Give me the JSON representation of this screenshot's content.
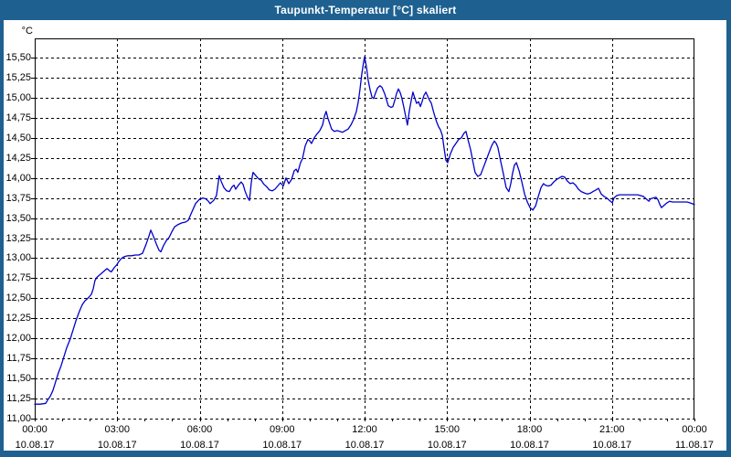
{
  "window": {
    "title": "Taupunkt-Temperatur [°C] skaliert"
  },
  "colors": {
    "frame": "#1e6191",
    "title_text": "#ffffff",
    "plot_bg": "#ffffff",
    "grid": "#000000",
    "line": "#0000cc"
  },
  "chart_data": {
    "type": "line",
    "title": "Taupunkt-Temperatur [°C] skaliert",
    "y_unit_label": "°C",
    "xlabel": "",
    "ylabel": "Taupunkt-Temperatur [°C]",
    "grid": "dashed",
    "legend_position": "none",
    "ylim": [
      11.0,
      15.74
    ],
    "x_hours_range": [
      0,
      24
    ],
    "x_minor_tick_step_hours": 1,
    "y_ticks": [
      {
        "v": 15.5,
        "label": "15,50"
      },
      {
        "v": 15.25,
        "label": "15,25"
      },
      {
        "v": 15.0,
        "label": "15,00"
      },
      {
        "v": 14.75,
        "label": "14,75"
      },
      {
        "v": 14.5,
        "label": "14,50"
      },
      {
        "v": 14.25,
        "label": "14,25"
      },
      {
        "v": 14.0,
        "label": "14,00"
      },
      {
        "v": 13.75,
        "label": "13,75"
      },
      {
        "v": 13.5,
        "label": "13,50"
      },
      {
        "v": 13.25,
        "label": "13,25"
      },
      {
        "v": 13.0,
        "label": "13,00"
      },
      {
        "v": 12.75,
        "label": "12,75"
      },
      {
        "v": 12.5,
        "label": "12,50"
      },
      {
        "v": 12.25,
        "label": "12,25"
      },
      {
        "v": 12.0,
        "label": "12,00"
      },
      {
        "v": 11.75,
        "label": "11,75"
      },
      {
        "v": 11.5,
        "label": "11,50"
      },
      {
        "v": 11.25,
        "label": "11,25"
      },
      {
        "v": 11.0,
        "label": "11,00"
      }
    ],
    "x_ticks": [
      {
        "t": 0,
        "time": "00:00",
        "date": "10.08.17"
      },
      {
        "t": 3,
        "time": "03:00",
        "date": "10.08.17"
      },
      {
        "t": 6,
        "time": "06:00",
        "date": "10.08.17"
      },
      {
        "t": 9,
        "time": "09:00",
        "date": "10.08.17"
      },
      {
        "t": 12,
        "time": "12:00",
        "date": "10.08.17"
      },
      {
        "t": 15,
        "time": "15:00",
        "date": "10.08.17"
      },
      {
        "t": 18,
        "time": "18:00",
        "date": "10.08.17"
      },
      {
        "t": 21,
        "time": "21:00",
        "date": "10.08.17"
      },
      {
        "t": 24,
        "time": "00:00",
        "date": "11.08.17"
      }
    ],
    "series": [
      {
        "name": "Taupunkt-Temperatur",
        "color": "#0000cc",
        "points": [
          [
            0,
            11.18
          ],
          [
            0.2,
            11.18
          ],
          [
            0.4,
            11.19
          ],
          [
            0.47,
            11.23
          ],
          [
            0.57,
            11.28
          ],
          [
            0.66,
            11.35
          ],
          [
            0.76,
            11.46
          ],
          [
            0.86,
            11.57
          ],
          [
            0.96,
            11.66
          ],
          [
            1.06,
            11.77
          ],
          [
            1.16,
            11.88
          ],
          [
            1.3,
            12.0
          ],
          [
            1.4,
            12.11
          ],
          [
            1.5,
            12.22
          ],
          [
            1.63,
            12.34
          ],
          [
            1.73,
            12.42
          ],
          [
            1.83,
            12.47
          ],
          [
            1.93,
            12.5
          ],
          [
            2.06,
            12.55
          ],
          [
            2.13,
            12.62
          ],
          [
            2.19,
            12.72
          ],
          [
            2.26,
            12.76
          ],
          [
            2.36,
            12.79
          ],
          [
            2.46,
            12.82
          ],
          [
            2.56,
            12.85
          ],
          [
            2.63,
            12.87
          ],
          [
            2.73,
            12.84
          ],
          [
            2.79,
            12.83
          ],
          [
            2.89,
            12.88
          ],
          [
            2.99,
            12.92
          ],
          [
            3.06,
            12.96
          ],
          [
            3.16,
            13.0
          ],
          [
            3.26,
            13.02
          ],
          [
            3.39,
            13.03
          ],
          [
            3.52,
            13.03
          ],
          [
            3.66,
            13.04
          ],
          [
            3.79,
            13.04
          ],
          [
            3.92,
            13.06
          ],
          [
            4.06,
            13.18
          ],
          [
            4.16,
            13.28
          ],
          [
            4.22,
            13.35
          ],
          [
            4.32,
            13.27
          ],
          [
            4.42,
            13.18
          ],
          [
            4.52,
            13.1
          ],
          [
            4.59,
            13.08
          ],
          [
            4.69,
            13.16
          ],
          [
            4.79,
            13.22
          ],
          [
            4.89,
            13.26
          ],
          [
            4.99,
            13.33
          ],
          [
            5.09,
            13.39
          ],
          [
            5.22,
            13.42
          ],
          [
            5.35,
            13.44
          ],
          [
            5.48,
            13.45
          ],
          [
            5.58,
            13.47
          ],
          [
            5.72,
            13.58
          ],
          [
            5.85,
            13.68
          ],
          [
            5.98,
            13.73
          ],
          [
            6.12,
            13.75
          ],
          [
            6.22,
            13.74
          ],
          [
            6.32,
            13.71
          ],
          [
            6.38,
            13.68
          ],
          [
            6.51,
            13.72
          ],
          [
            6.61,
            13.78
          ],
          [
            6.71,
            14.03
          ],
          [
            6.78,
            13.96
          ],
          [
            6.88,
            13.88
          ],
          [
            6.98,
            13.84
          ],
          [
            7.08,
            13.83
          ],
          [
            7.18,
            13.89
          ],
          [
            7.25,
            13.91
          ],
          [
            7.31,
            13.86
          ],
          [
            7.41,
            13.91
          ],
          [
            7.51,
            13.95
          ],
          [
            7.58,
            13.92
          ],
          [
            7.65,
            13.84
          ],
          [
            7.74,
            13.76
          ],
          [
            7.81,
            13.72
          ],
          [
            7.88,
            13.95
          ],
          [
            7.94,
            14.07
          ],
          [
            8.04,
            14.03
          ],
          [
            8.14,
            13.99
          ],
          [
            8.24,
            13.97
          ],
          [
            8.34,
            13.92
          ],
          [
            8.44,
            13.89
          ],
          [
            8.54,
            13.85
          ],
          [
            8.64,
            13.84
          ],
          [
            8.74,
            13.86
          ],
          [
            8.84,
            13.9
          ],
          [
            8.94,
            13.94
          ],
          [
            9.04,
            13.9
          ],
          [
            9.14,
            14.0
          ],
          [
            9.24,
            13.93
          ],
          [
            9.34,
            13.98
          ],
          [
            9.44,
            14.09
          ],
          [
            9.51,
            14.11
          ],
          [
            9.57,
            14.07
          ],
          [
            9.67,
            14.19
          ],
          [
            9.74,
            14.24
          ],
          [
            9.84,
            14.4
          ],
          [
            9.94,
            14.48
          ],
          [
            10.01,
            14.46
          ],
          [
            10.07,
            14.43
          ],
          [
            10.17,
            14.5
          ],
          [
            10.27,
            14.55
          ],
          [
            10.37,
            14.59
          ],
          [
            10.47,
            14.66
          ],
          [
            10.54,
            14.77
          ],
          [
            10.6,
            14.83
          ],
          [
            10.67,
            14.74
          ],
          [
            10.74,
            14.67
          ],
          [
            10.8,
            14.61
          ],
          [
            10.9,
            14.58
          ],
          [
            11.0,
            14.59
          ],
          [
            11.1,
            14.58
          ],
          [
            11.2,
            14.57
          ],
          [
            11.3,
            14.59
          ],
          [
            11.4,
            14.61
          ],
          [
            11.5,
            14.66
          ],
          [
            11.6,
            14.73
          ],
          [
            11.7,
            14.83
          ],
          [
            11.77,
            14.95
          ],
          [
            11.83,
            15.1
          ],
          [
            11.9,
            15.3
          ],
          [
            11.97,
            15.46
          ],
          [
            12.0,
            15.51
          ],
          [
            12.07,
            15.38
          ],
          [
            12.13,
            15.22
          ],
          [
            12.2,
            15.1
          ],
          [
            12.27,
            15.01
          ],
          [
            12.33,
            14.99
          ],
          [
            12.4,
            15.06
          ],
          [
            12.47,
            15.12
          ],
          [
            12.56,
            15.15
          ],
          [
            12.63,
            15.13
          ],
          [
            12.73,
            15.05
          ],
          [
            12.8,
            14.97
          ],
          [
            12.86,
            14.9
          ],
          [
            12.96,
            14.88
          ],
          [
            13.03,
            14.89
          ],
          [
            13.1,
            14.97
          ],
          [
            13.16,
            15.05
          ],
          [
            13.23,
            15.11
          ],
          [
            13.3,
            15.06
          ],
          [
            13.36,
            14.99
          ],
          [
            13.43,
            14.88
          ],
          [
            13.5,
            14.76
          ],
          [
            13.56,
            14.66
          ],
          [
            13.63,
            14.84
          ],
          [
            13.7,
            14.97
          ],
          [
            13.76,
            15.07
          ],
          [
            13.83,
            14.99
          ],
          [
            13.89,
            14.93
          ],
          [
            13.96,
            14.95
          ],
          [
            14.03,
            14.89
          ],
          [
            14.09,
            14.95
          ],
          [
            14.16,
            15.03
          ],
          [
            14.23,
            15.07
          ],
          [
            14.33,
            14.99
          ],
          [
            14.43,
            14.93
          ],
          [
            14.52,
            14.81
          ],
          [
            14.62,
            14.7
          ],
          [
            14.69,
            14.64
          ],
          [
            14.76,
            14.6
          ],
          [
            14.83,
            14.53
          ],
          [
            14.89,
            14.38
          ],
          [
            14.96,
            14.22
          ],
          [
            15.02,
            14.19
          ],
          [
            15.12,
            14.3
          ],
          [
            15.22,
            14.38
          ],
          [
            15.32,
            14.43
          ],
          [
            15.42,
            14.48
          ],
          [
            15.52,
            14.5
          ],
          [
            15.62,
            14.56
          ],
          [
            15.69,
            14.58
          ],
          [
            15.76,
            14.48
          ],
          [
            15.86,
            14.35
          ],
          [
            15.92,
            14.24
          ],
          [
            16.02,
            14.07
          ],
          [
            16.12,
            14.02
          ],
          [
            16.22,
            14.04
          ],
          [
            16.32,
            14.13
          ],
          [
            16.42,
            14.22
          ],
          [
            16.52,
            14.31
          ],
          [
            16.62,
            14.4
          ],
          [
            16.72,
            14.46
          ],
          [
            16.79,
            14.43
          ],
          [
            16.85,
            14.38
          ],
          [
            16.95,
            14.21
          ],
          [
            17.05,
            14.05
          ],
          [
            17.15,
            13.88
          ],
          [
            17.25,
            13.83
          ],
          [
            17.32,
            13.93
          ],
          [
            17.38,
            14.05
          ],
          [
            17.45,
            14.16
          ],
          [
            17.52,
            14.19
          ],
          [
            17.62,
            14.09
          ],
          [
            17.72,
            13.95
          ],
          [
            17.82,
            13.8
          ],
          [
            17.92,
            13.7
          ],
          [
            18.02,
            13.63
          ],
          [
            18.12,
            13.6
          ],
          [
            18.22,
            13.65
          ],
          [
            18.32,
            13.77
          ],
          [
            18.42,
            13.88
          ],
          [
            18.51,
            13.93
          ],
          [
            18.58,
            13.91
          ],
          [
            18.68,
            13.9
          ],
          [
            18.78,
            13.91
          ],
          [
            18.88,
            13.95
          ],
          [
            18.98,
            13.98
          ],
          [
            19.08,
            14.0
          ],
          [
            19.18,
            14.02
          ],
          [
            19.28,
            14.01
          ],
          [
            19.38,
            13.96
          ],
          [
            19.48,
            13.93
          ],
          [
            19.58,
            13.94
          ],
          [
            19.68,
            13.91
          ],
          [
            19.78,
            13.86
          ],
          [
            19.88,
            13.83
          ],
          [
            20.01,
            13.81
          ],
          [
            20.11,
            13.8
          ],
          [
            20.21,
            13.81
          ],
          [
            20.31,
            13.83
          ],
          [
            20.41,
            13.85
          ],
          [
            20.51,
            13.87
          ],
          [
            20.61,
            13.8
          ],
          [
            20.71,
            13.77
          ],
          [
            20.81,
            13.75
          ],
          [
            20.91,
            13.72
          ],
          [
            21.01,
            13.69
          ],
          [
            21.07,
            13.75
          ],
          [
            21.17,
            13.78
          ],
          [
            21.27,
            13.79
          ],
          [
            21.41,
            13.79
          ],
          [
            21.54,
            13.79
          ],
          [
            21.67,
            13.79
          ],
          [
            21.8,
            13.79
          ],
          [
            21.94,
            13.79
          ],
          [
            22.04,
            13.78
          ],
          [
            22.14,
            13.77
          ],
          [
            22.24,
            13.74
          ],
          [
            22.34,
            13.71
          ],
          [
            22.4,
            13.74
          ],
          [
            22.5,
            13.75
          ],
          [
            22.6,
            13.76
          ],
          [
            22.67,
            13.73
          ],
          [
            22.74,
            13.67
          ],
          [
            22.8,
            13.63
          ],
          [
            22.9,
            13.66
          ],
          [
            23.0,
            13.69
          ],
          [
            23.1,
            13.71
          ],
          [
            23.2,
            13.7
          ],
          [
            23.33,
            13.7
          ],
          [
            23.47,
            13.7
          ],
          [
            23.6,
            13.7
          ],
          [
            23.73,
            13.7
          ],
          [
            23.83,
            13.69
          ],
          [
            24.0,
            13.67
          ]
        ]
      }
    ]
  }
}
